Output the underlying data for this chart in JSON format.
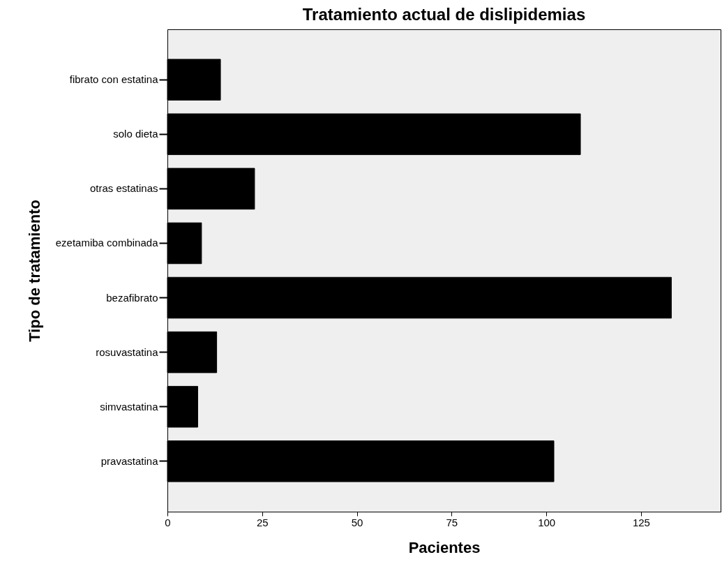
{
  "chart_data": {
    "type": "bar",
    "orientation": "horizontal",
    "title": "Tratamiento actual de dislipidemias",
    "xlabel": "Pacientes",
    "ylabel": "Tipo de tratamiento",
    "categories": [
      "fibrato con estatina",
      "solo dieta",
      "otras estatinas",
      "ezetamiba combinada",
      "bezafibrato",
      "rosuvastatina",
      "simvastatina",
      "pravastatina"
    ],
    "values": [
      14,
      109,
      23,
      9,
      133,
      13,
      8,
      102
    ],
    "color": "#000000",
    "xlim": [
      0,
      146
    ],
    "xticks": [
      0,
      25,
      50,
      75,
      100,
      125
    ],
    "grid": false
  }
}
